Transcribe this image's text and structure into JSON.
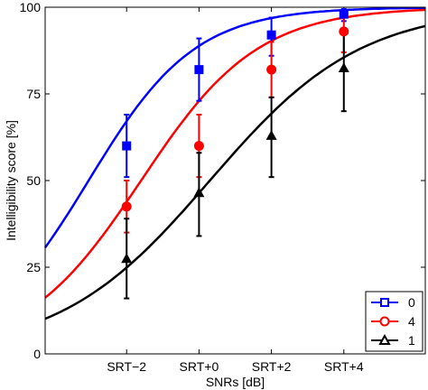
{
  "chart_data": {
    "type": "line",
    "title": "",
    "xlabel": "SNRs [dB]",
    "ylabel": "Intelligibility score [%]",
    "x_ticks": [
      {
        "value": -2,
        "label": "SRT−2"
      },
      {
        "value": 0,
        "label": "SRT+0"
      },
      {
        "value": 2,
        "label": "SRT+2"
      },
      {
        "value": 4,
        "label": "SRT+4"
      }
    ],
    "y_ticks": [
      0,
      25,
      50,
      75,
      100
    ],
    "xlim": [
      -4.25,
      6.25
    ],
    "ylim": [
      0,
      100
    ],
    "grid": false,
    "legend": {
      "placement": "bottom-right"
    },
    "series": [
      {
        "name": "0",
        "color": "#0000ff",
        "marker": "square",
        "points": [
          {
            "x": -2,
            "y": 60,
            "err_low": 51,
            "err_high": 69
          },
          {
            "x": 0,
            "y": 82,
            "err_low": 73,
            "err_high": 91
          },
          {
            "x": 2,
            "y": 92,
            "err_low": 86,
            "err_high": 97
          },
          {
            "x": 4,
            "y": 98,
            "err_low": 96,
            "err_high": 99.5
          }
        ],
        "fit": {
          "midpoint": -3.05,
          "slope": 0.68
        }
      },
      {
        "name": "4",
        "color": "#ff0000",
        "marker": "circle",
        "points": [
          {
            "x": -2,
            "y": 42.5,
            "err_low": 35,
            "err_high": 50
          },
          {
            "x": 0,
            "y": 60,
            "err_low": 51,
            "err_high": 69
          },
          {
            "x": 2,
            "y": 82,
            "err_low": 74,
            "err_high": 90
          },
          {
            "x": 4,
            "y": 93,
            "err_low": 87,
            "err_high": 97
          }
        ],
        "fit": {
          "midpoint": -1.6,
          "slope": 0.62
        }
      },
      {
        "name": "1",
        "color": "#000000",
        "marker": "triangle",
        "points": [
          {
            "x": -2,
            "y": 27.5,
            "err_low": 16,
            "err_high": 39
          },
          {
            "x": 0,
            "y": 46.5,
            "err_low": 34,
            "err_high": 58
          },
          {
            "x": 2,
            "y": 63,
            "err_low": 51,
            "err_high": 74
          },
          {
            "x": 4,
            "y": 82.5,
            "err_low": 70,
            "err_high": 94
          }
        ],
        "fit": {
          "midpoint": 0.3,
          "slope": 0.48
        }
      }
    ]
  }
}
